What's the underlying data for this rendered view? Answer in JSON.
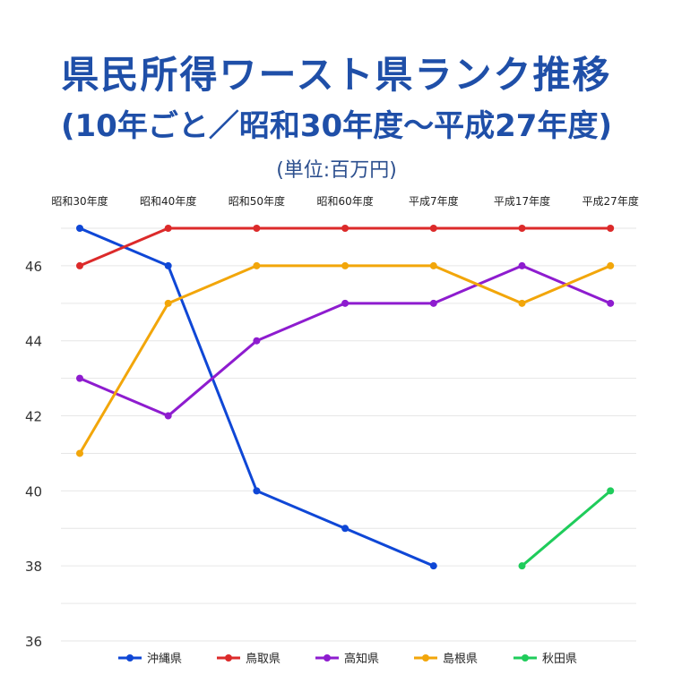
{
  "title": {
    "main": "県民所得ワースト県ランク推移",
    "sub": "(10年ごと／昭和30年度〜平成27年度)",
    "unit": "(単位:百万円)"
  },
  "chart_data": {
    "type": "line",
    "title": "県民所得ワースト県ランク推移",
    "categories": [
      "昭和30年度",
      "昭和40年度",
      "昭和50年度",
      "昭和60年度",
      "平成7年度",
      "平成17年度",
      "平成27年度"
    ],
    "ylim": [
      36,
      47
    ],
    "yticks": [
      36,
      38,
      40,
      42,
      44,
      46
    ],
    "grid": true,
    "legend_position": "bottom",
    "series": [
      {
        "name": "沖縄県",
        "color": "#0f47d6",
        "values": [
          47,
          46,
          40,
          39,
          38,
          null,
          null
        ]
      },
      {
        "name": "鳥取県",
        "color": "#dc2a2a",
        "values": [
          46,
          47,
          47,
          47,
          47,
          47,
          47
        ]
      },
      {
        "name": "高知県",
        "color": "#8e1ccf",
        "values": [
          43,
          42,
          44,
          45,
          45,
          46,
          45
        ]
      },
      {
        "name": "島根県",
        "color": "#f2a60a",
        "values": [
          41,
          45,
          46,
          46,
          46,
          45,
          46
        ]
      },
      {
        "name": "秋田県",
        "color": "#1fcc5b",
        "values": [
          null,
          null,
          null,
          null,
          null,
          38,
          40
        ]
      }
    ]
  }
}
